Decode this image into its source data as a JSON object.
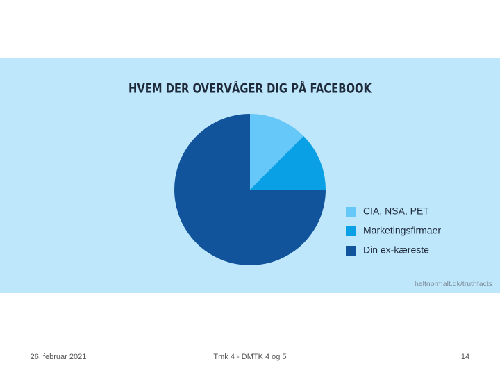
{
  "chart_data": {
    "type": "pie",
    "title": "HVEM DER OVERVÅGER DIG PÅ FACEBOOK",
    "categories": [
      "CIA, NSA, PET",
      "Marketingsfirmaer",
      "Din ex-kæreste"
    ],
    "values": [
      12.5,
      12.5,
      75
    ],
    "colors": [
      "#66c8f8",
      "#0aa0e6",
      "#12549b"
    ],
    "source": "heltnormalt.dk/truthfacts"
  },
  "footer": {
    "date": "26. februar 2021",
    "center": "Tmk 4 - DMTK 4 og 5",
    "page": "14"
  }
}
